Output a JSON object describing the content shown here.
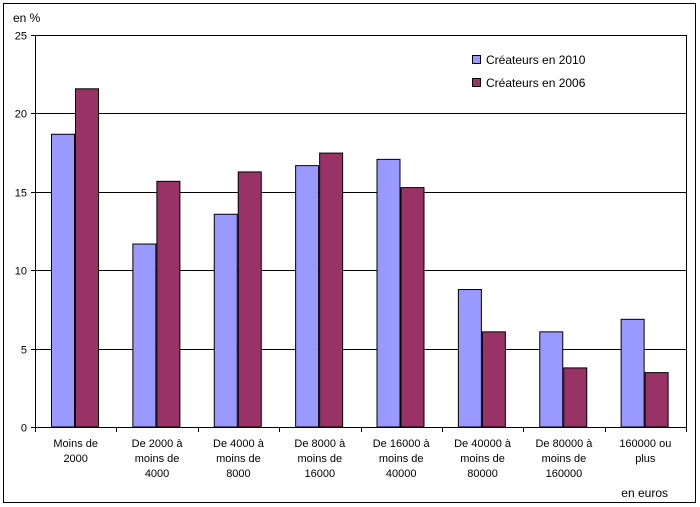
{
  "chart_data": {
    "type": "bar",
    "y_unit_label": "en %",
    "x_unit_label": "en euros",
    "ylim": [
      0,
      25
    ],
    "yticks": [
      0,
      5,
      10,
      15,
      20,
      25
    ],
    "grid": true,
    "legend_position": "top-right",
    "categories": [
      [
        "Moins de",
        "2000"
      ],
      [
        "De 2000 à",
        "moins de",
        "4000"
      ],
      [
        "De 4000 à",
        "moins de",
        "8000"
      ],
      [
        "De 8000 à",
        "moins de",
        "16000"
      ],
      [
        "De 16000 à",
        "moins de",
        "40000"
      ],
      [
        "De 40000 à",
        "moins de",
        "80000"
      ],
      [
        "De 80000 à",
        "moins de",
        "160000"
      ],
      [
        "160000 ou",
        "plus"
      ]
    ],
    "series": [
      {
        "name": "Créateurs en 2010",
        "color": "#9999ff",
        "values": [
          18.7,
          11.7,
          13.6,
          16.7,
          17.1,
          8.8,
          6.1,
          6.9
        ]
      },
      {
        "name": "Créateurs en 2006",
        "color": "#993366",
        "values": [
          21.6,
          15.7,
          16.3,
          17.5,
          15.3,
          6.1,
          3.8,
          3.5
        ]
      }
    ]
  }
}
